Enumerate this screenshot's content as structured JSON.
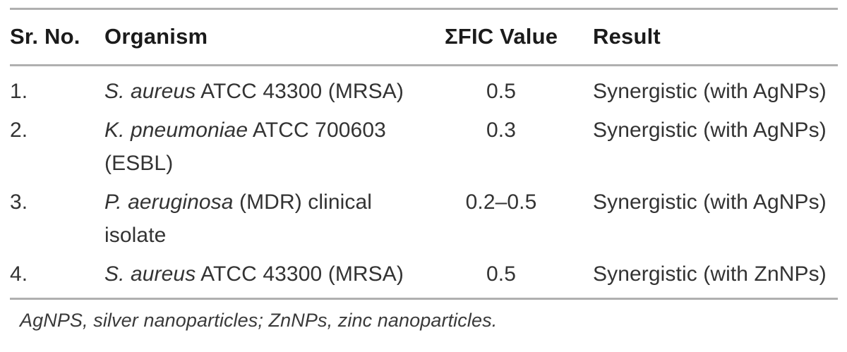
{
  "table": {
    "columns": [
      {
        "key": "sr_no",
        "label": "Sr. No."
      },
      {
        "key": "organism",
        "label": "Organism"
      },
      {
        "key": "fic",
        "label": "ΣFIC Value"
      },
      {
        "key": "result",
        "label": "Result"
      }
    ],
    "rows": [
      {
        "sr_no": "1.",
        "organism_italic": "S. aureus",
        "organism_rest": " ATCC 43300 (MRSA)",
        "fic": "0.5",
        "result": "Synergistic (with AgNPs)"
      },
      {
        "sr_no": "2.",
        "organism_italic": "K. pneumoniae",
        "organism_rest": " ATCC 700603 (ESBL)",
        "fic": "0.3",
        "result": "Synergistic (with AgNPs)"
      },
      {
        "sr_no": "3.",
        "organism_italic": "P. aeruginosa",
        "organism_rest": " (MDR) clinical isolate",
        "fic": "0.2–0.5",
        "result": "Synergistic (with AgNPs)"
      },
      {
        "sr_no": "4.",
        "organism_italic": "S. aureus",
        "organism_rest": " ATCC 43300 (MRSA)",
        "fic": "0.5",
        "result": "Synergistic (with ZnNPs)"
      }
    ],
    "footnote": "AgNPS, silver nanoparticles; ZnNPs, zinc nanoparticles."
  },
  "colors": {
    "rule": "#b0b0b0",
    "header_text": "#1b1b1b",
    "body_text": "#333333"
  }
}
